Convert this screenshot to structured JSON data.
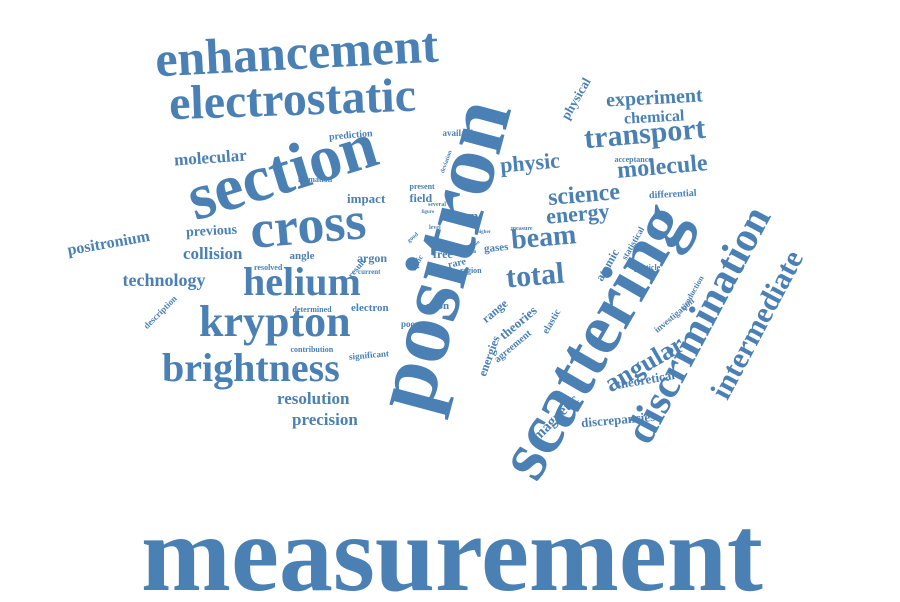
{
  "color": "#4a80b4",
  "words": [
    "measurement",
    "positron",
    "scattering",
    "section",
    "cross",
    "enhancement",
    "electrostatic",
    "krypton",
    "helium",
    "brightness",
    "discrimination",
    "transport",
    "intermediate",
    "angular",
    "total",
    "beam",
    "molecule",
    "science",
    "energy",
    "physic",
    "experiment",
    "chemical",
    "molecular",
    "technology",
    "collision",
    "resolution",
    "precision",
    "positronium",
    "previous",
    "theoretical",
    "discrepancies",
    "magnetic",
    "atomic",
    "physical",
    "impact",
    "field",
    "atom",
    "argon",
    "angle",
    "neon",
    "electron",
    "free",
    "gases",
    "rare",
    "theories",
    "energies",
    "range",
    "agreement",
    "elastic",
    "differential",
    "prediction",
    "available",
    "acceptance",
    "investigation",
    "production",
    "statistical",
    "particle",
    "region",
    "description",
    "determined",
    "contribution",
    "significant",
    "resolved",
    "formation",
    "present",
    "poorer",
    "result",
    "optic",
    "current",
    "several",
    "level",
    "higher",
    "deviation",
    "measure",
    "figure",
    "good",
    "issue",
    "japan",
    "upon"
  ]
}
